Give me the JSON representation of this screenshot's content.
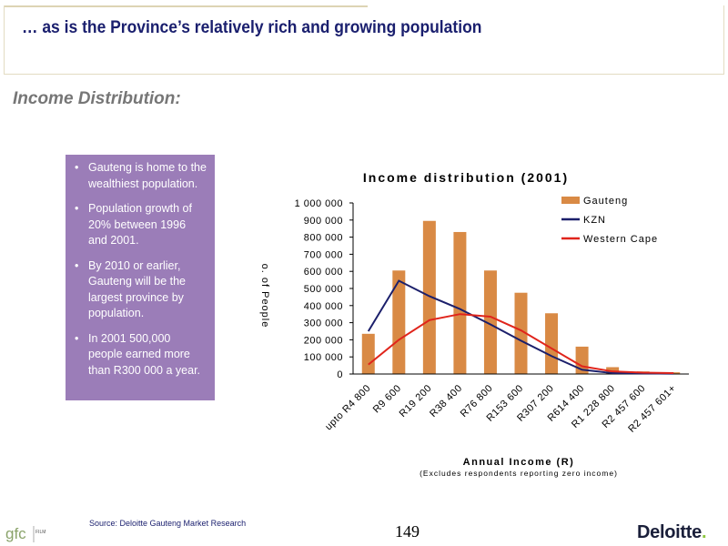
{
  "slide": {
    "title": "… as is the Province’s relatively rich and growing population",
    "subtitle": "Income Distribution:",
    "bullets": [
      "Gauteng is home to the wealthiest population.",
      "Population growth of 20% between 1996 and 2001.",
      "By 2010 or earlier, Gauteng will be the largest province by population.",
      "In 2001 500,000 people earned more than R300 000 a year."
    ],
    "source": "Source: Deloitte Gauteng Market Research",
    "page_number": "149",
    "brand": "Deloitte",
    "footer_logo_text": "gfc",
    "footer_logo_subtext": "FILM"
  },
  "colors": {
    "title": "#1a1f6e",
    "box": "#9b7db8",
    "gauteng": "#d98a45",
    "kzn": "#1b1f6b",
    "western_cape": "#e0241b"
  },
  "chart_data": {
    "type": "bar",
    "title": "Income distribution (2001)",
    "xlabel": "Annual Income (R)",
    "xlabel_note": "(Excludes respondents reporting zero income)",
    "ylabel": "o. of People",
    "ylim": [
      0,
      1000000
    ],
    "yticks": [
      "0",
      "100 000",
      "200 000",
      "300 000",
      "400 000",
      "500 000",
      "600 000",
      "700 000",
      "800 000",
      "900 000",
      "1 000 000"
    ],
    "categories": [
      "upto R4 800",
      "R9 600",
      "R19 200",
      "R38 400",
      "R76 800",
      "R153 600",
      "R307 200",
      "R614 400",
      "R1 228 800",
      "R2 457 600",
      "R2 457 601+"
    ],
    "series": [
      {
        "name": "Gauteng",
        "kind": "bar",
        "color": "#d98a45",
        "values": [
          235000,
          605000,
          895000,
          830000,
          605000,
          475000,
          355000,
          160000,
          40000,
          15000,
          10000
        ]
      },
      {
        "name": "KZN",
        "kind": "line",
        "color": "#1b1f6b",
        "values": [
          250000,
          545000,
          455000,
          380000,
          290000,
          195000,
          105000,
          25000,
          5000,
          3000,
          2000
        ]
      },
      {
        "name": "Western Cape",
        "kind": "line",
        "color": "#e0241b",
        "values": [
          55000,
          200000,
          315000,
          350000,
          335000,
          255000,
          150000,
          45000,
          15000,
          8000,
          5000
        ]
      }
    ],
    "legend_position": "top-right",
    "grid": false
  }
}
